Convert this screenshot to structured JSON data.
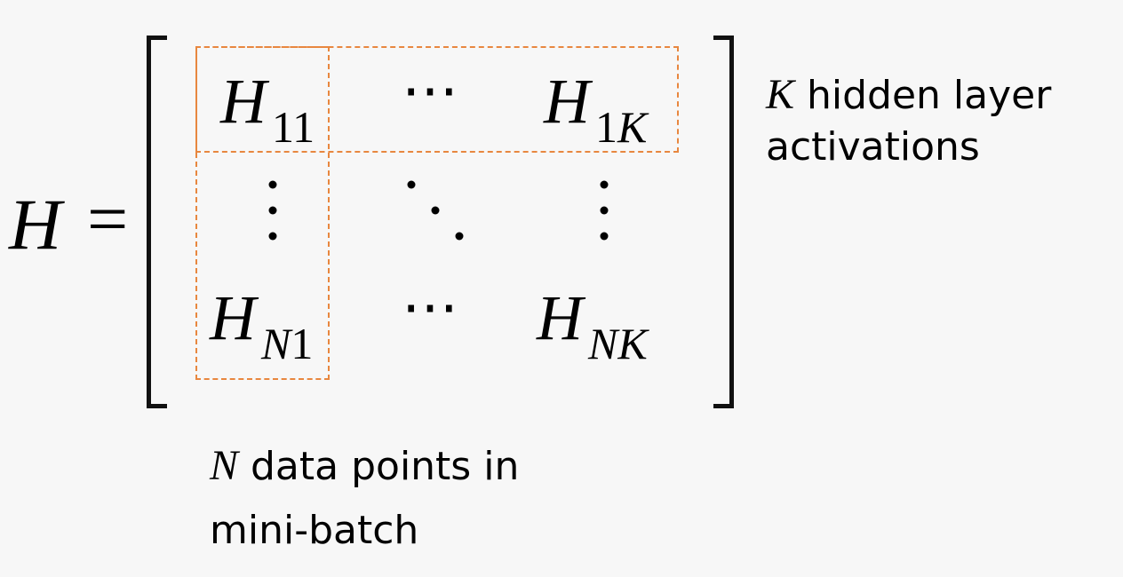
{
  "equation": {
    "lhs": "H",
    "equals": "=",
    "entries": {
      "top_left": {
        "base": "H",
        "sub": "11"
      },
      "top_right": {
        "base": "H",
        "sub_num": "1",
        "sub_var": "K"
      },
      "bottom_left": {
        "base": "H",
        "sub_var": "N",
        "sub_num": "1"
      },
      "bottom_right": {
        "base": "H",
        "sub_var": "NK"
      },
      "hdots": "⋯"
    }
  },
  "annotations": {
    "rows": {
      "var": "K",
      "text_line1": " hidden layer",
      "text_line2": "activations"
    },
    "cols": {
      "var": "N",
      "text_line1": " data points in",
      "text_line2": "mini-batch"
    }
  },
  "colors": {
    "highlight": "#e8873f",
    "background": "#f7f7f7",
    "text": "#000000"
  }
}
